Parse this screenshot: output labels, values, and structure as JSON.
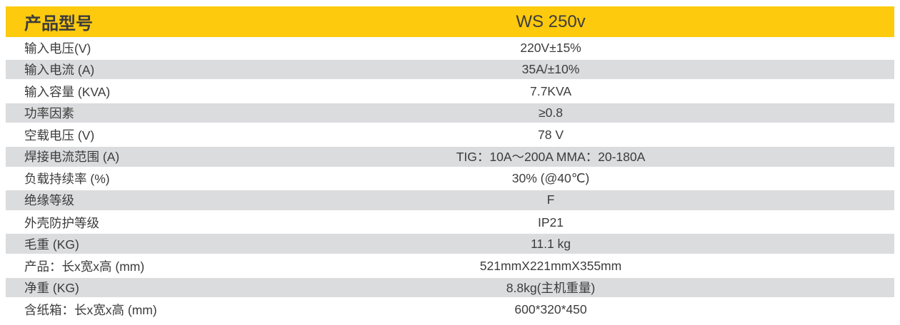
{
  "colors": {
    "header_bg": "#FDCA0D",
    "alt_row_bg": "#DBDCDE",
    "text": "#3C3C3C"
  },
  "table": {
    "header": {
      "label": "产品型号",
      "value": "WS 250v"
    },
    "columns": [
      "parameter",
      "value"
    ],
    "rows": [
      {
        "label": "输入电压(V)",
        "value": "220V±15%"
      },
      {
        "label": "输入电流 (A)",
        "value": "35A/±10%"
      },
      {
        "label": "输入容量 (KVA)",
        "value": "7.7KVA"
      },
      {
        "label": "功率因素",
        "value": "≥0.8"
      },
      {
        "label": "空载电压 (V)",
        "value": "78 V"
      },
      {
        "label": "焊接电流范围 (A)",
        "value": "TIG：10A～200A MMA：20-180A"
      },
      {
        "label": "负载持续率 (%)",
        "value": "30% (@40℃)"
      },
      {
        "label": "绝缘等级",
        "value": "F"
      },
      {
        "label": "外壳防护等级",
        "value": "IP21"
      },
      {
        "label": "毛重 (KG)",
        "value": "11.1 kg"
      },
      {
        "label": "产品：长x宽x高 (mm)",
        "value": "521mmX221mmX355mm"
      },
      {
        "label": "净重 (KG)",
        "value": "8.8kg(主机重量)"
      },
      {
        "label": "含纸箱：长x宽x高 (mm)",
        "value": "600*320*450"
      }
    ]
  }
}
